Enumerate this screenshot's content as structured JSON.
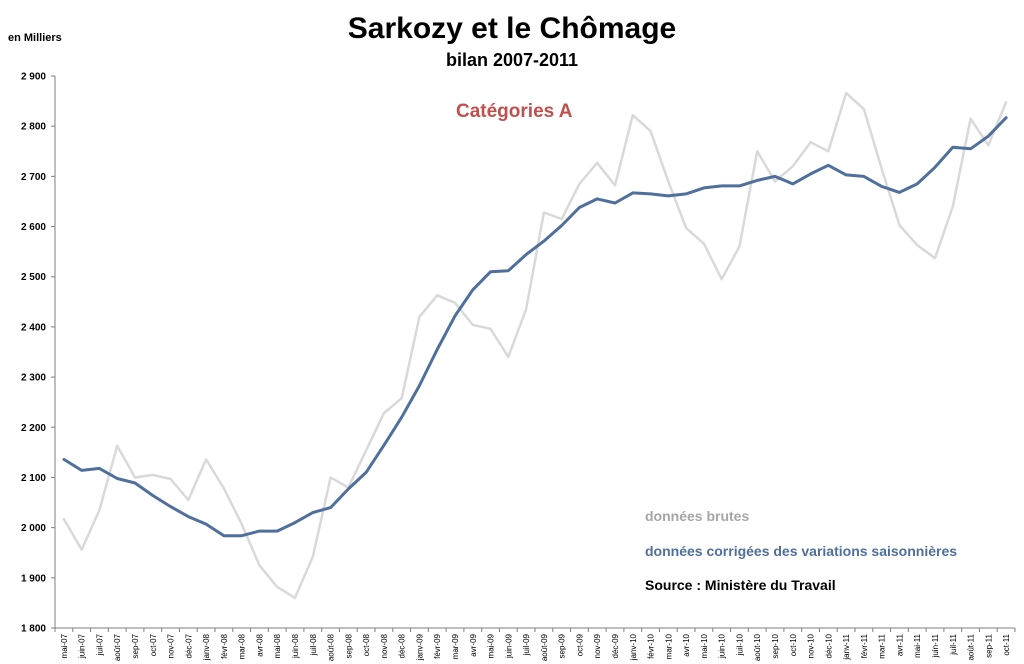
{
  "page": {
    "title": "Sarkozy et le Chômage",
    "subtitle": "bilan 2007-2011",
    "unit_label": "en Milliers",
    "category_label": "Catégories A",
    "legend_raw": "données brutes",
    "legend_cvs": "données corrigées des variations saisonnières",
    "source": "Source : Ministère du Travail"
  },
  "colors": {
    "raw": "#d9d9d9",
    "cvs": "#4f6f9c",
    "category": "#c0504d",
    "legend_raw": "#a6a6a6",
    "legend_cvs": "#4f6f9c",
    "axis": "#7f7f7f"
  },
  "chart_data": {
    "type": "line",
    "title": "Sarkozy et le Chômage",
    "subtitle": "bilan 2007-2011",
    "ylabel": "en Milliers",
    "ylim": [
      1800,
      2900
    ],
    "yticks": [
      1800,
      1900,
      2000,
      2100,
      2200,
      2300,
      2400,
      2500,
      2600,
      2700,
      2800,
      2900
    ],
    "ytick_labels": [
      "1 800",
      "1 900",
      "2 000",
      "2 100",
      "2 200",
      "2 300",
      "2 400",
      "2 500",
      "2 600",
      "2 700",
      "2 800",
      "2 900"
    ],
    "grid": false,
    "categories": [
      "mai-07",
      "juin-07",
      "juil-07",
      "août-07",
      "sept-07",
      "oct-07",
      "nov-07",
      "déc-07",
      "janv-08",
      "févr-08",
      "mars-08",
      "avr-08",
      "mai-08",
      "juin-08",
      "juil-08",
      "août-08",
      "sept-08",
      "oct-08",
      "nov-08",
      "déc-08",
      "janv-09",
      "févr-09",
      "mars-09",
      "avr-09",
      "mai-09",
      "juin-09",
      "juil-09",
      "août-09",
      "sept-09",
      "oct-09",
      "nov-09",
      "déc-09",
      "janv-10",
      "févr-10",
      "mars-10",
      "avr-10",
      "mai-10",
      "juin-10",
      "juil-10",
      "août-10",
      "sept-10",
      "oct-10",
      "nov-10",
      "déc-10",
      "janv-11",
      "févr-11",
      "mars-11",
      "avr-11",
      "mai-11",
      "juin-11",
      "juil-11",
      "août-11",
      "sept-11",
      "oct-11"
    ],
    "xtick_labels": [
      "mai-07",
      "",
      "juil-07",
      "",
      "sep-07",
      "",
      "nov-07",
      "",
      "janv-08",
      "",
      "mar-08",
      "",
      "mai-08",
      "",
      "juil-08",
      "",
      "sep-08",
      "",
      "nov-08",
      "",
      "janv-09",
      "",
      "mar-09",
      "",
      "mai-09",
      "",
      "juil-09",
      "",
      "sep-09",
      "",
      "nov-09",
      "",
      "janv-10",
      "",
      "mar-10",
      "",
      "mai-10",
      "",
      "juil-10",
      "",
      "sep-10",
      "",
      "nov-10",
      "",
      "janv-11",
      "",
      "mar-11",
      "",
      "mai-11",
      "",
      "juil-11",
      "",
      "sep-11",
      ""
    ],
    "xtick_labels_between": [
      "",
      "juin-07",
      "",
      "août-07",
      "",
      "oct-07",
      "",
      "déc-07",
      "",
      "févr-08",
      "",
      "avr-08",
      "",
      "juin-08",
      "",
      "août-08",
      "",
      "oct-08",
      "",
      "déc-08",
      "",
      "févr-09",
      "",
      "avr-09",
      "",
      "juin-09",
      "",
      "août-09",
      "",
      "oct-09",
      "",
      "déc-09",
      "",
      "févr-10",
      "",
      "avr-10",
      "",
      "juin-10",
      "",
      "août-10",
      "",
      "oct-10",
      "",
      "déc-10",
      "",
      "févr-11",
      "",
      "avr-11",
      "",
      "juin-11",
      "",
      "août-11",
      "",
      "oct-11"
    ],
    "series": [
      {
        "name": "données brutes",
        "values": [
          2017,
          1956,
          2035,
          2163,
          2100,
          2105,
          2097,
          2055,
          2136,
          2078,
          2007,
          1925,
          1882,
          1860,
          1942,
          2100,
          2080,
          2154,
          2228,
          2258,
          2420,
          2463,
          2448,
          2404,
          2396,
          2340,
          2435,
          2628,
          2615,
          2685,
          2727,
          2682,
          2822,
          2790,
          2690,
          2597,
          2566,
          2495,
          2560,
          2750,
          2690,
          2720,
          2768,
          2750,
          2866,
          2834,
          2715,
          2603,
          2563,
          2537,
          2640,
          2815,
          2762,
          2848
        ]
      },
      {
        "name": "données corrigées des variations saisonnières",
        "values": [
          2136,
          2114,
          2118,
          2098,
          2089,
          2064,
          2042,
          2022,
          2007,
          1984,
          1984,
          1993,
          1993,
          2010,
          2030,
          2040,
          2077,
          2110,
          2164,
          2220,
          2283,
          2355,
          2422,
          2474,
          2510,
          2512,
          2544,
          2571,
          2602,
          2638,
          2655,
          2647,
          2667,
          2665,
          2661,
          2665,
          2677,
          2681,
          2681,
          2692,
          2700,
          2685,
          2705,
          2722,
          2703,
          2700,
          2680,
          2668,
          2685,
          2718,
          2758,
          2755,
          2780,
          2817
        ]
      }
    ]
  }
}
